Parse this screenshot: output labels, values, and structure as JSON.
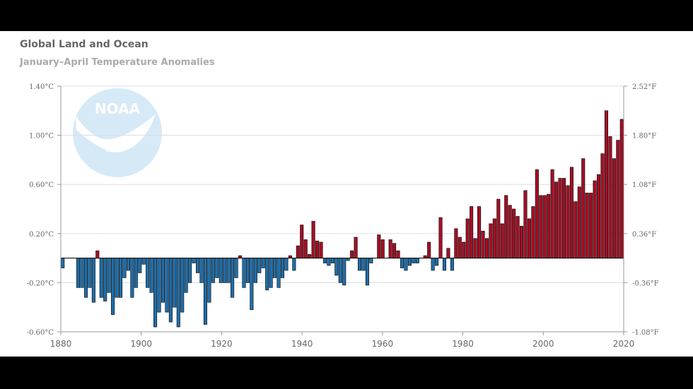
{
  "chart_data": {
    "type": "bar",
    "title": "Global Land and Ocean",
    "subtitle": "January–April Temperature Anomalies",
    "xlabel": "",
    "ylabel": "",
    "xlim": [
      1880,
      2020
    ],
    "ylim": [
      -0.6,
      1.4
    ],
    "grid": true,
    "left_axis_ticks": [
      "1.40°C",
      "1.00°C",
      "0.60°C",
      "0.20°C",
      "-0.20°C",
      "-0.60°C"
    ],
    "right_axis_ticks": [
      "2.52°F",
      "1.80°F",
      "1.08°F",
      "0.36°F",
      "-0.36°F",
      "-1.08°F"
    ],
    "x_ticks": [
      "1880",
      "1900",
      "1920",
      "1940",
      "1960",
      "1980",
      "2000",
      "2020"
    ],
    "watermark": "NOAA",
    "colors": {
      "positive": "#a50f25",
      "negative": "#1f6eaa",
      "grid": "#dddddd"
    },
    "years": [
      1880,
      2020
    ],
    "values": [
      -0.08,
      0.0,
      0.0,
      0.0,
      -0.24,
      -0.24,
      -0.32,
      -0.24,
      -0.36,
      0.06,
      -0.32,
      -0.35,
      -0.28,
      -0.46,
      -0.32,
      -0.32,
      -0.16,
      -0.1,
      -0.32,
      -0.24,
      -0.12,
      -0.05,
      -0.24,
      -0.28,
      -0.56,
      -0.44,
      -0.36,
      -0.44,
      -0.52,
      -0.4,
      -0.56,
      -0.44,
      -0.28,
      -0.2,
      -0.04,
      -0.12,
      -0.2,
      -0.54,
      -0.36,
      -0.2,
      -0.16,
      -0.2,
      -0.2,
      -0.2,
      -0.32,
      -0.16,
      0.02,
      -0.24,
      -0.2,
      -0.42,
      -0.2,
      -0.12,
      -0.08,
      -0.26,
      -0.24,
      -0.16,
      -0.24,
      -0.16,
      -0.1,
      0.02,
      -0.1,
      0.1,
      0.27,
      0.15,
      0.03,
      0.3,
      0.14,
      0.13,
      -0.04,
      -0.06,
      -0.04,
      -0.14,
      -0.2,
      -0.22,
      -0.02,
      0.06,
      0.17,
      -0.1,
      -0.1,
      -0.22,
      -0.04,
      0.0,
      0.19,
      0.15,
      0.0,
      0.15,
      0.12,
      0.06,
      -0.08,
      -0.1,
      -0.06,
      -0.04,
      -0.04,
      0.0,
      0.02,
      0.13,
      -0.1,
      -0.06,
      0.33,
      -0.1,
      0.08,
      -0.1,
      0.24,
      0.17,
      0.13,
      0.32,
      0.42,
      0.16,
      0.42,
      0.22,
      0.16,
      0.28,
      0.32,
      0.48,
      0.28,
      0.51,
      0.43,
      0.4,
      0.34,
      0.26,
      0.55,
      0.32,
      0.42,
      0.72,
      0.51,
      0.51,
      0.52,
      0.72,
      0.62,
      0.65,
      0.65,
      0.59,
      0.74,
      0.46,
      0.58,
      0.81,
      0.53,
      0.53,
      0.63,
      0.68,
      0.85,
      1.2,
      0.99,
      0.81,
      0.96,
      1.13
    ]
  }
}
